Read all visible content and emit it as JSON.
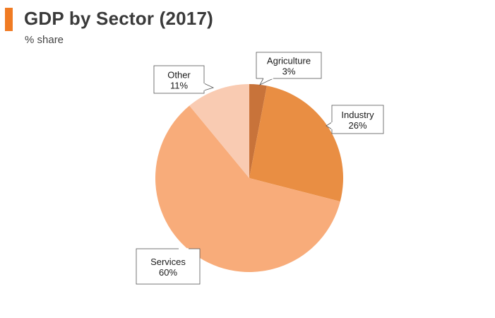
{
  "header": {
    "title": "GDP by Sector (2017)",
    "subtitle": "% share",
    "accent_color": "#f07b23"
  },
  "chart_data": {
    "type": "pie",
    "title": "GDP by Sector (2017)",
    "subtitle": "% share",
    "start_angle_deg": 0,
    "direction": "clockwise",
    "slices": [
      {
        "label": "Agriculture",
        "value": 3,
        "value_label": "3%",
        "color": "#c8733a"
      },
      {
        "label": "Industry",
        "value": 26,
        "value_label": "26%",
        "color": "#e98e43"
      },
      {
        "label": "Services",
        "value": 60,
        "value_label": "60%",
        "color": "#f8ac7a"
      },
      {
        "label": "Other",
        "value": 11,
        "value_label": "11%",
        "color": "#f9cbb2"
      }
    ]
  }
}
